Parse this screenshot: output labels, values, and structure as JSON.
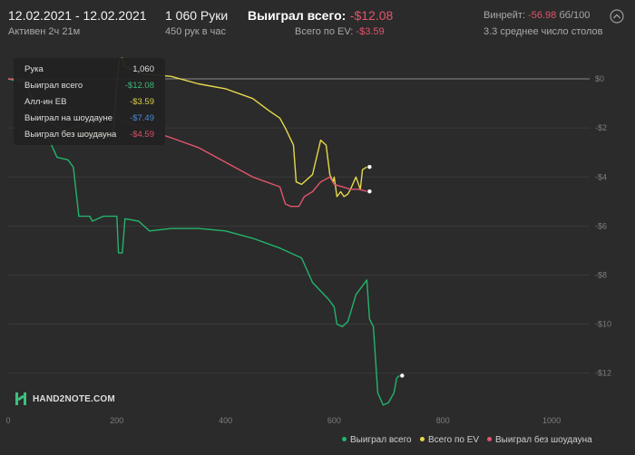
{
  "header": {
    "date_range": "12.02.2021 - 12.02.2021",
    "active": "Активен 2ч 21м",
    "hands": "1 060 Руки",
    "hands_per_hour": "450 рук в час",
    "total_won_label": "Выиграл всего:",
    "total_won_value": "-$12.08",
    "total_ev_label": "Всего по EV:",
    "total_ev_value": "-$3.59",
    "winrate_label": "Винрейт:",
    "winrate_value": "-56.98",
    "winrate_unit": "бб/100",
    "avg_tables": "3.3 среднее число столов"
  },
  "tooltip": {
    "rows": [
      {
        "label": "Рука",
        "value": "1,060",
        "color": "#e6e6e6"
      },
      {
        "label": "Выиграл всего",
        "value": "-$12.08",
        "color": "#3fbf7f"
      },
      {
        "label": "Алл-ин EB",
        "value": "-$3.59",
        "color": "#e6d84a"
      },
      {
        "label": "Выиграл на шоудауне",
        "value": "-$7.49",
        "color": "#4a90e2"
      },
      {
        "label": "Выиграл без шоудауна",
        "value": "-$4.59",
        "color": "#e0556b"
      }
    ]
  },
  "logo": "HAND2NOTE.COM",
  "legend": [
    {
      "label": "Выиграл всего",
      "color": "#24b36b"
    },
    {
      "label": "Всего по EV",
      "color": "#e6d84a"
    },
    {
      "label": "Выиграл без шоудауна",
      "color": "#e0556b"
    }
  ],
  "chart_data": {
    "type": "line",
    "xlabel": "",
    "ylabel": "",
    "xlim": [
      0,
      1070
    ],
    "ylim": [
      -13.6,
      1.0
    ],
    "x_ticks": [
      0,
      200,
      400,
      600,
      800,
      1000
    ],
    "y_ticks": [
      0,
      -2,
      -4,
      -6,
      -8,
      -10,
      -12
    ],
    "x_tick_labels": [
      "0",
      "200",
      "400",
      "600",
      "800",
      "1000"
    ],
    "y_tick_labels": [
      "$0",
      "-$2",
      "-$4",
      "-$6",
      "-$8",
      "-$10",
      "-$12"
    ],
    "grid": "horizontal",
    "legend_position": "bottom-right",
    "series": [
      {
        "name": "Выиграл всего",
        "color": "#24b36b",
        "points": [
          [
            0,
            0
          ],
          [
            10,
            -0.05
          ],
          [
            30,
            -0.12
          ],
          [
            55,
            -1.5
          ],
          [
            90,
            -3.2
          ],
          [
            110,
            -3.3
          ],
          [
            120,
            -3.6
          ],
          [
            130,
            -5.6
          ],
          [
            150,
            -5.6
          ],
          [
            155,
            -5.8
          ],
          [
            175,
            -5.6
          ],
          [
            200,
            -5.6
          ],
          [
            203,
            -7.1
          ],
          [
            210,
            -7.1
          ],
          [
            215,
            -5.7
          ],
          [
            240,
            -5.8
          ],
          [
            260,
            -6.2
          ],
          [
            300,
            -6.1
          ],
          [
            350,
            -6.1
          ],
          [
            400,
            -6.2
          ],
          [
            450,
            -6.5
          ],
          [
            500,
            -6.9
          ],
          [
            540,
            -7.3
          ],
          [
            560,
            -8.3
          ],
          [
            590,
            -9.0
          ],
          [
            600,
            -9.3
          ],
          [
            605,
            -10.0
          ],
          [
            615,
            -10.1
          ],
          [
            625,
            -9.9
          ],
          [
            640,
            -8.8
          ],
          [
            660,
            -8.2
          ],
          [
            665,
            -9.8
          ],
          [
            672,
            -10.1
          ],
          [
            680,
            -12.8
          ],
          [
            690,
            -13.3
          ],
          [
            700,
            -13.2
          ],
          [
            710,
            -12.8
          ],
          [
            715,
            -12.2
          ],
          [
            720,
            -12.1
          ]
        ]
      },
      {
        "name": "Всего по EV",
        "color": "#e6d84a",
        "points": [
          [
            0,
            0
          ],
          [
            30,
            -0.05
          ],
          [
            55,
            -1.4
          ],
          [
            100,
            -2.1
          ],
          [
            130,
            -2.3
          ],
          [
            185,
            -2.3
          ],
          [
            193,
            -2.3
          ],
          [
            200,
            -0.1
          ],
          [
            205,
            0.8
          ],
          [
            210,
            0.85
          ],
          [
            215,
            0.5
          ],
          [
            250,
            0.2
          ],
          [
            300,
            0.1
          ],
          [
            350,
            -0.2
          ],
          [
            400,
            -0.4
          ],
          [
            450,
            -0.8
          ],
          [
            480,
            -1.3
          ],
          [
            500,
            -1.6
          ],
          [
            510,
            -2.0
          ],
          [
            525,
            -2.7
          ],
          [
            530,
            -4.2
          ],
          [
            540,
            -4.3
          ],
          [
            555,
            -4.0
          ],
          [
            560,
            -3.9
          ],
          [
            575,
            -2.5
          ],
          [
            585,
            -2.7
          ],
          [
            592,
            -3.9
          ],
          [
            598,
            -4.2
          ],
          [
            600,
            -4.0
          ],
          [
            605,
            -4.8
          ],
          [
            612,
            -4.6
          ],
          [
            618,
            -4.8
          ],
          [
            625,
            -4.7
          ],
          [
            630,
            -4.5
          ],
          [
            640,
            -4.0
          ],
          [
            648,
            -4.5
          ],
          [
            652,
            -3.7
          ],
          [
            660,
            -3.59
          ]
        ]
      },
      {
        "name": "Выиграл без шоудауна",
        "color": "#e0556b",
        "points": [
          [
            0,
            0
          ],
          [
            30,
            -0.05
          ],
          [
            55,
            -1.4
          ],
          [
            100,
            -2.1
          ],
          [
            185,
            -1.6
          ],
          [
            200,
            -1.6
          ],
          [
            260,
            -2.1
          ],
          [
            300,
            -2.4
          ],
          [
            350,
            -2.8
          ],
          [
            400,
            -3.4
          ],
          [
            450,
            -4.0
          ],
          [
            500,
            -4.4
          ],
          [
            510,
            -5.1
          ],
          [
            520,
            -5.2
          ],
          [
            535,
            -5.2
          ],
          [
            545,
            -4.8
          ],
          [
            560,
            -4.6
          ],
          [
            575,
            -4.2
          ],
          [
            592,
            -4.0
          ],
          [
            600,
            -4.3
          ],
          [
            615,
            -4.4
          ],
          [
            630,
            -4.5
          ],
          [
            645,
            -4.5
          ],
          [
            660,
            -4.59
          ]
        ]
      }
    ]
  },
  "colors": {
    "background": "#2b2b2b",
    "grid": "#3a3a3a",
    "zero_line": "#8a8a8a",
    "axis_text": "#7d7d7d"
  }
}
